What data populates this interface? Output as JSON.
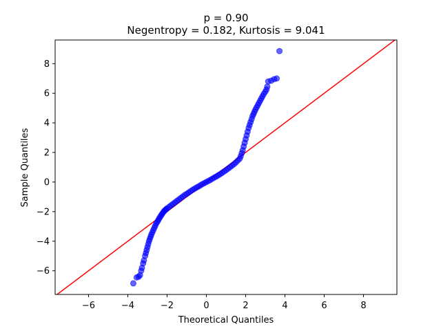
{
  "chart_data": {
    "type": "scatter",
    "title_line1": "p = 0.90",
    "title_line2": "Negentropy = 0.182, Kurtosis = 9.041",
    "xlabel": "Theoretical Quantiles",
    "ylabel": "Sample Quantiles",
    "xlim": [
      -7.7,
      9.7
    ],
    "ylim": [
      -7.6,
      9.6
    ],
    "xticks": [
      -6,
      -4,
      -2,
      0,
      2,
      4,
      6,
      8
    ],
    "yticks": [
      -6,
      -4,
      -2,
      0,
      2,
      4,
      6,
      8
    ],
    "grid": false,
    "reference_line": {
      "slope": 1,
      "intercept": 0,
      "color": "#ff0000"
    },
    "point_color": "#0000ff",
    "series": [
      {
        "values_xy": [
          [
            -3.72,
            -6.85
          ],
          [
            -3.55,
            -6.45
          ],
          [
            -3.45,
            -6.4
          ],
          [
            -3.38,
            -6.3
          ],
          [
            -3.32,
            -6.0
          ],
          [
            -3.28,
            -5.8
          ],
          [
            -3.22,
            -5.5
          ],
          [
            -3.18,
            -5.3
          ],
          [
            -3.12,
            -5.0
          ],
          [
            -3.08,
            -4.8
          ],
          [
            -3.04,
            -4.6
          ],
          [
            -3.0,
            -4.4
          ],
          [
            -2.96,
            -4.2
          ],
          [
            -2.92,
            -4.0
          ],
          [
            -2.88,
            -3.85
          ],
          [
            -2.84,
            -3.7
          ],
          [
            -2.8,
            -3.55
          ],
          [
            -2.75,
            -3.4
          ],
          [
            -2.7,
            -3.25
          ],
          [
            -2.65,
            -3.1
          ],
          [
            -2.6,
            -2.95
          ],
          [
            -2.55,
            -2.8
          ],
          [
            -2.5,
            -2.7
          ],
          [
            -2.45,
            -2.58
          ],
          [
            -2.4,
            -2.46
          ],
          [
            -2.35,
            -2.35
          ],
          [
            -2.3,
            -2.25
          ],
          [
            -2.25,
            -2.15
          ],
          [
            -2.2,
            -2.05
          ],
          [
            -2.15,
            -1.97
          ],
          [
            -2.1,
            -1.9
          ],
          [
            -2.05,
            -1.84
          ],
          [
            -2.0,
            -1.78
          ],
          [
            -1.9,
            -1.68
          ],
          [
            -1.8,
            -1.58
          ],
          [
            -1.7,
            -1.48
          ],
          [
            -1.6,
            -1.38
          ],
          [
            -1.5,
            -1.28
          ],
          [
            -1.4,
            -1.18
          ],
          [
            -1.3,
            -1.08
          ],
          [
            -1.2,
            -0.98
          ],
          [
            -1.1,
            -0.88
          ],
          [
            -1.0,
            -0.8
          ],
          [
            -0.9,
            -0.71
          ],
          [
            -0.8,
            -0.62
          ],
          [
            -0.7,
            -0.53
          ],
          [
            -0.6,
            -0.45
          ],
          [
            -0.5,
            -0.37
          ],
          [
            -0.4,
            -0.3
          ],
          [
            -0.3,
            -0.22
          ],
          [
            -0.2,
            -0.14
          ],
          [
            -0.1,
            -0.07
          ],
          [
            0.0,
            0.0
          ],
          [
            0.1,
            0.07
          ],
          [
            0.2,
            0.14
          ],
          [
            0.3,
            0.22
          ],
          [
            0.4,
            0.3
          ],
          [
            0.5,
            0.37
          ],
          [
            0.6,
            0.45
          ],
          [
            0.7,
            0.53
          ],
          [
            0.8,
            0.62
          ],
          [
            0.9,
            0.71
          ],
          [
            1.0,
            0.8
          ],
          [
            1.1,
            0.9
          ],
          [
            1.2,
            1.0
          ],
          [
            1.3,
            1.1
          ],
          [
            1.4,
            1.2
          ],
          [
            1.5,
            1.32
          ],
          [
            1.6,
            1.45
          ],
          [
            1.7,
            1.58
          ],
          [
            1.75,
            1.75
          ],
          [
            1.8,
            1.95
          ],
          [
            1.85,
            2.15
          ],
          [
            1.9,
            2.4
          ],
          [
            1.95,
            2.65
          ],
          [
            2.0,
            2.9
          ],
          [
            2.05,
            3.15
          ],
          [
            2.1,
            3.4
          ],
          [
            2.15,
            3.65
          ],
          [
            2.2,
            3.85
          ],
          [
            2.25,
            4.05
          ],
          [
            2.3,
            4.25
          ],
          [
            2.35,
            4.45
          ],
          [
            2.4,
            4.6
          ],
          [
            2.45,
            4.75
          ],
          [
            2.5,
            4.9
          ],
          [
            2.56,
            5.05
          ],
          [
            2.62,
            5.2
          ],
          [
            2.68,
            5.35
          ],
          [
            2.74,
            5.5
          ],
          [
            2.8,
            5.65
          ],
          [
            2.86,
            5.8
          ],
          [
            2.92,
            5.95
          ],
          [
            3.0,
            6.1
          ],
          [
            3.06,
            6.25
          ],
          [
            3.1,
            6.45
          ],
          [
            3.15,
            6.8
          ],
          [
            3.3,
            6.85
          ],
          [
            3.45,
            6.95
          ],
          [
            3.58,
            7.0
          ],
          [
            3.72,
            8.85
          ]
        ]
      }
    ]
  }
}
